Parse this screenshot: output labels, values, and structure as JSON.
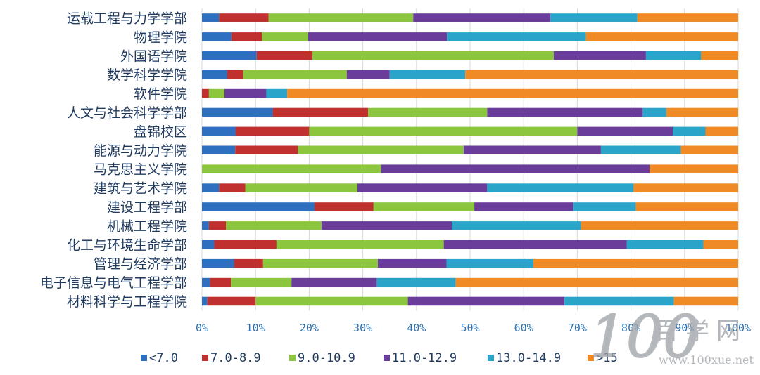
{
  "chart_data": {
    "type": "bar",
    "orientation": "horizontal",
    "stacked": "percent",
    "categories": [
      "运载工程与力学学部",
      "物理学院",
      "外国语学院",
      "数学科学学院",
      "软件学院",
      "人文与社会科学学部",
      "盘锦校区",
      "能源与动力学院",
      "马克思主义学院",
      "建筑与艺术学院",
      "建设工程学部",
      "机械工程学院",
      "化工与环境生命学部",
      "管理与经济学部",
      "电子信息与电气工程学部",
      "材料科学与工程学院"
    ],
    "series": [
      {
        "name": "<7.0",
        "color": "#2e6fbf",
        "values": [
          3.2,
          5.5,
          10.2,
          4.7,
          0.0,
          13.2,
          6.3,
          6.2,
          0.0,
          3.2,
          21.0,
          1.3,
          2.3,
          6.0,
          1.5,
          1.0
        ]
      },
      {
        "name": "7.0-8.9",
        "color": "#c0302e",
        "values": [
          9.2,
          5.7,
          10.4,
          3.0,
          1.3,
          17.8,
          13.7,
          11.7,
          0.0,
          4.9,
          11.0,
          3.2,
          11.6,
          5.4,
          3.9,
          9.0
        ]
      },
      {
        "name": "9.0-10.9",
        "color": "#8cc63f",
        "values": [
          27.0,
          8.6,
          45.0,
          19.3,
          2.9,
          22.2,
          50.0,
          30.9,
          33.4,
          20.9,
          18.8,
          17.8,
          31.2,
          21.4,
          11.3,
          28.4
        ]
      },
      {
        "name": "11.0-12.9",
        "color": "#6a3d9a",
        "values": [
          25.6,
          25.9,
          17.2,
          8.0,
          7.8,
          29.0,
          17.8,
          25.6,
          50.1,
          24.2,
          18.4,
          24.3,
          34.1,
          12.8,
          15.9,
          29.2
        ]
      },
      {
        "name": "13.0-14.9",
        "color": "#2aa5c9",
        "values": [
          16.2,
          25.9,
          10.3,
          14.1,
          3.9,
          4.4,
          6.1,
          14.9,
          0.0,
          27.3,
          11.7,
          24.1,
          14.3,
          16.2,
          14.7,
          20.4
        ]
      },
      {
        "name": ">15",
        "color": "#f08a24",
        "values": [
          18.8,
          28.4,
          6.9,
          50.9,
          84.1,
          13.4,
          6.1,
          10.7,
          16.5,
          19.5,
          19.1,
          29.3,
          6.5,
          38.2,
          52.7,
          12.0
        ]
      }
    ],
    "xlim": [
      0,
      100
    ],
    "xticks": [
      "0%",
      "10%",
      "20%",
      "30%",
      "40%",
      "50%",
      "60%",
      "70%",
      "80%",
      "90%",
      "100%"
    ],
    "grid": true,
    "legend": "bottom"
  },
  "watermark": {
    "brand": "百学网",
    "url": "www.100xue.net",
    "logo_text": "100"
  }
}
